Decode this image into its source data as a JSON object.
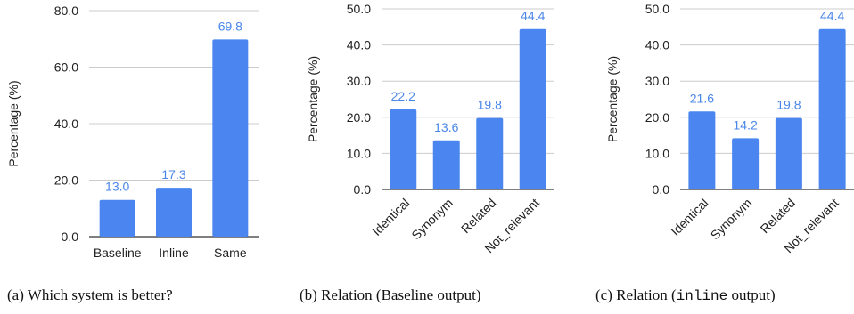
{
  "colors": {
    "bar": "#4b86f0",
    "label": "#4a86e8",
    "grid": "#cccccc",
    "axis": "#333333"
  },
  "chart_data": [
    {
      "type": "bar",
      "caption_prefix": "(a) Which system is better?",
      "caption_mono": "",
      "caption_suffix": "",
      "ylabel": "Percentage (%)",
      "ylim": [
        0,
        80
      ],
      "yticks": [
        "0.0",
        "20.0",
        "40.0",
        "60.0",
        "80.0"
      ],
      "categories": [
        "Baseline",
        "Inline",
        "Same"
      ],
      "values": [
        13.0,
        17.3,
        69.8
      ],
      "value_labels": [
        "13.0",
        "17.3",
        "69.8"
      ],
      "rotated_categories": false
    },
    {
      "type": "bar",
      "caption_prefix": "(b) Relation (Baseline output)",
      "caption_mono": "",
      "caption_suffix": "",
      "ylabel": "Percentage (%)",
      "ylim": [
        0,
        50
      ],
      "yticks": [
        "0.0",
        "10.0",
        "20.0",
        "30.0",
        "40.0",
        "50.0"
      ],
      "categories": [
        "Identical",
        "Synonym",
        "Related",
        "Not_relevant"
      ],
      "values": [
        22.2,
        13.6,
        19.8,
        44.4
      ],
      "value_labels": [
        "22.2",
        "13.6",
        "19.8",
        "44.4"
      ],
      "rotated_categories": true
    },
    {
      "type": "bar",
      "caption_prefix": "(c) Relation (",
      "caption_mono": "inline",
      "caption_suffix": " output)",
      "ylabel": "Percentage (%)",
      "ylim": [
        0,
        50
      ],
      "yticks": [
        "0.0",
        "10.0",
        "20.0",
        "30.0",
        "40.0",
        "50.0"
      ],
      "categories": [
        "Identical",
        "Synonym",
        "Related",
        "Not_relevant"
      ],
      "values": [
        21.6,
        14.2,
        19.8,
        44.4
      ],
      "value_labels": [
        "21.6",
        "14.2",
        "19.8",
        "44.4"
      ],
      "rotated_categories": true
    }
  ]
}
